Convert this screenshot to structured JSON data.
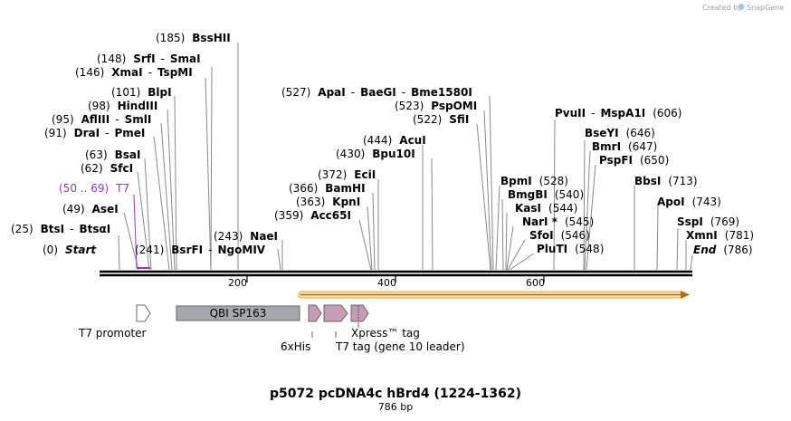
{
  "header": {
    "created_by": "Created by",
    "brand": "SnapGene"
  },
  "map": {
    "title": "p5072 pcDNA4c hBrd4 (1224-1362)",
    "length_label": "786 bp",
    "ruler_ticks": [
      "200",
      "400",
      "600"
    ]
  },
  "sites": [
    {
      "pos": "(185)",
      "names": [
        "BssHII"
      ]
    },
    {
      "pos": "(148)",
      "names": [
        "SrfI",
        "SmaI"
      ]
    },
    {
      "pos": "(146)",
      "names": [
        "XmaI",
        "TspMI"
      ]
    },
    {
      "pos": "(101)",
      "names": [
        "BlpI"
      ]
    },
    {
      "pos": "(98)",
      "names": [
        "HindIII"
      ]
    },
    {
      "pos": "(95)",
      "names": [
        "AflIII",
        "SmlI"
      ]
    },
    {
      "pos": "(91)",
      "names": [
        "DraI",
        "PmeI"
      ]
    },
    {
      "pos": "(63)",
      "names": [
        "BsaI"
      ]
    },
    {
      "pos": "(62)",
      "names": [
        "SfcI"
      ]
    },
    {
      "pos": "(50 .. 69)",
      "names": [
        "T7"
      ]
    },
    {
      "pos": "(49)",
      "names": [
        "AseI"
      ]
    },
    {
      "pos": "(25)",
      "names": [
        "BtsI",
        "BtsαI"
      ]
    },
    {
      "pos": "(0)",
      "names": [
        "Start"
      ]
    },
    {
      "pos": "(241)",
      "names": [
        "BsrFI",
        "NgoMIV"
      ]
    },
    {
      "pos": "(243)",
      "names": [
        "NaeI"
      ]
    },
    {
      "pos": "(527)",
      "names": [
        "ApaI",
        "BaeGI",
        "Bme1580I"
      ]
    },
    {
      "pos": "(523)",
      "names": [
        "PspOMI"
      ]
    },
    {
      "pos": "(522)",
      "names": [
        "SfiI"
      ]
    },
    {
      "pos": "(444)",
      "names": [
        "AcuI"
      ]
    },
    {
      "pos": "(430)",
      "names": [
        "Bpu10I"
      ]
    },
    {
      "pos": "(372)",
      "names": [
        "EciI"
      ]
    },
    {
      "pos": "(366)",
      "names": [
        "BamHI"
      ]
    },
    {
      "pos": "(363)",
      "names": [
        "KpnI"
      ]
    },
    {
      "pos": "(359)",
      "names": [
        "Acc65I"
      ]
    },
    {
      "pos": "(606)",
      "names": [
        "PvuII",
        "MspA1I"
      ]
    },
    {
      "pos": "(528)",
      "names": [
        "BpmI"
      ]
    },
    {
      "pos": "(540)",
      "names": [
        "BmgBI"
      ]
    },
    {
      "pos": "(544)",
      "names": [
        "KasI"
      ]
    },
    {
      "pos": "(545)",
      "names": [
        "NarI *"
      ]
    },
    {
      "pos": "(546)",
      "names": [
        "SfoI"
      ]
    },
    {
      "pos": "(548)",
      "names": [
        "PluTI"
      ]
    },
    {
      "pos": "(646)",
      "names": [
        "BseYI"
      ]
    },
    {
      "pos": "(647)",
      "names": [
        "BmrI"
      ]
    },
    {
      "pos": "(650)",
      "names": [
        "PspFI"
      ]
    },
    {
      "pos": "(713)",
      "names": [
        "BbsI"
      ]
    },
    {
      "pos": "(743)",
      "names": [
        "ApoI"
      ]
    },
    {
      "pos": "(769)",
      "names": [
        "SspI"
      ]
    },
    {
      "pos": "(781)",
      "names": [
        "XmnI"
      ]
    },
    {
      "pos": "(786)",
      "names": [
        "End"
      ]
    }
  ],
  "features": {
    "qbi": "QBI SP163",
    "t7_promoter": "T7 promoter",
    "his": "6xHis",
    "t7tag": "T7 tag (gene 10 leader)",
    "xpress": "Xpress™ tag"
  },
  "colors": {
    "feature_gray": "#a4a9b0",
    "feature_pink": "#c79ab8",
    "orf_orange": "#f0a030",
    "t7_purple": "#9933cc",
    "backbone": "#000000"
  }
}
